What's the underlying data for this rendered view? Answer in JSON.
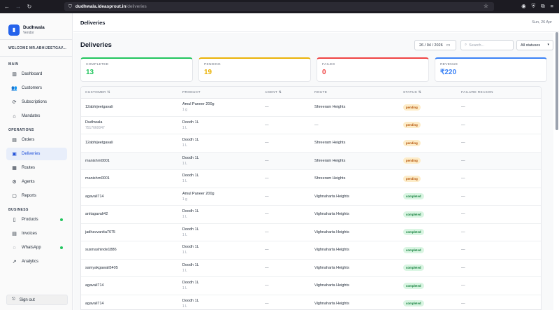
{
  "browser": {
    "url_host": "dudhwala.ideasprout.in",
    "url_path": "/deliveries"
  },
  "sidebar": {
    "brand_name": "Dudhwala",
    "brand_role": "Vendor",
    "welcome": "WELCOME MR.ABHIJEETGAV...",
    "sections": [
      {
        "label": "MAIN",
        "items": [
          {
            "label": "Dashboard",
            "icon": "chart-icon"
          },
          {
            "label": "Customers",
            "icon": "users-icon"
          },
          {
            "label": "Subscriptions",
            "icon": "refresh-icon"
          },
          {
            "label": "Mandates",
            "icon": "bank-icon"
          }
        ]
      },
      {
        "label": "OPERATIONS",
        "items": [
          {
            "label": "Orders",
            "icon": "clipboard-icon"
          },
          {
            "label": "Deliveries",
            "icon": "package-icon",
            "active": true
          },
          {
            "label": "Routes",
            "icon": "map-icon"
          },
          {
            "label": "Agents",
            "icon": "bike-icon"
          },
          {
            "label": "Reports",
            "icon": "file-icon"
          }
        ]
      },
      {
        "label": "BUSINESS",
        "items": [
          {
            "label": "Products",
            "icon": "cup-icon",
            "online": true
          },
          {
            "label": "Invoices",
            "icon": "receipt-icon"
          },
          {
            "label": "WhatsApp",
            "icon": "chat-icon",
            "online": true
          },
          {
            "label": "Analytics",
            "icon": "trend-icon"
          }
        ]
      }
    ],
    "signout": "Sign out"
  },
  "header": {
    "title": "Deliveries",
    "date": "Sun, 26 Apr"
  },
  "page": {
    "title": "Deliveries",
    "date_value": "26 / 04 / 2026",
    "search_placeholder": "Search...",
    "status_filter": "All statuses"
  },
  "stats": [
    {
      "label": "COMPLETED",
      "value": "13",
      "color": "#22c55e"
    },
    {
      "label": "PENDING",
      "value": "19",
      "color": "#eab308"
    },
    {
      "label": "FAILED",
      "value": "0",
      "color": "#ef4444"
    },
    {
      "label": "REVENUE",
      "value": "₹220",
      "color": "#3b82f6"
    }
  ],
  "table": {
    "headers": [
      "CUSTOMER ⇅",
      "PRODUCT",
      "AGENT ⇅",
      "ROUTE",
      "STATUS ⇅",
      "FAILURE REASON"
    ],
    "rows": [
      {
        "customer": "12abhijeetgavali",
        "phone": "",
        "product": "Amul Paneer 200g",
        "qty": "1 g",
        "agent": "—",
        "route": "Shreeram Heights",
        "status": "pending",
        "reason": "—"
      },
      {
        "customer": "Dudhwala",
        "phone": "7517660047",
        "product": "Doodh 1L",
        "qty": "1 L",
        "agent": "—",
        "route": "—",
        "status": "pending",
        "reason": "—"
      },
      {
        "customer": "12abhijeetgavali",
        "phone": "",
        "product": "Doodh 1L",
        "qty": "1 L",
        "agent": "—",
        "route": "Shreeram Heights",
        "status": "pending",
        "reason": "—"
      },
      {
        "customer": "manishrn0001",
        "phone": "",
        "product": "Doodh 1L",
        "qty": "1 L",
        "agent": "—",
        "route": "Shreeram Heights",
        "status": "pending",
        "reason": "—"
      },
      {
        "customer": "manishrn0001",
        "phone": "",
        "product": "Doodh 1L",
        "qty": "1 L",
        "agent": "—",
        "route": "Shreeram Heights",
        "status": "pending",
        "reason": "—"
      },
      {
        "customer": "agavali714",
        "phone": "",
        "product": "Amul Paneer 200g",
        "qty": "1 g",
        "agent": "—",
        "route": "Vighnaharta Heights",
        "status": "completed",
        "reason": "—"
      },
      {
        "customer": "anitagavali42",
        "phone": "",
        "product": "Doodh 1L",
        "qty": "1 L",
        "agent": "—",
        "route": "Vighnaharta Heights",
        "status": "completed",
        "reason": "—"
      },
      {
        "customer": "jadhavvanita7675",
        "phone": "",
        "product": "Doodh 1L",
        "qty": "1 L",
        "agent": "—",
        "route": "Vighnaharta Heights",
        "status": "completed",
        "reason": "—"
      },
      {
        "customer": "susmashinde1886",
        "phone": "",
        "product": "Doodh 1L",
        "qty": "1 L",
        "agent": "—",
        "route": "Vighnaharta Heights",
        "status": "completed",
        "reason": "—"
      },
      {
        "customer": "samyakgawali5405",
        "phone": "",
        "product": "Doodh 1L",
        "qty": "1 L",
        "agent": "—",
        "route": "Vighnaharta Heights",
        "status": "completed",
        "reason": "—"
      },
      {
        "customer": "agavali714",
        "phone": "",
        "product": "Doodh 1L",
        "qty": "1 L",
        "agent": "—",
        "route": "Vighnaharta Heights",
        "status": "completed",
        "reason": "—"
      },
      {
        "customer": "agavali714",
        "phone": "",
        "product": "Doodh 1L",
        "qty": "1 L",
        "agent": "—",
        "route": "Vighnaharta Heights",
        "status": "completed",
        "reason": "—"
      }
    ]
  }
}
